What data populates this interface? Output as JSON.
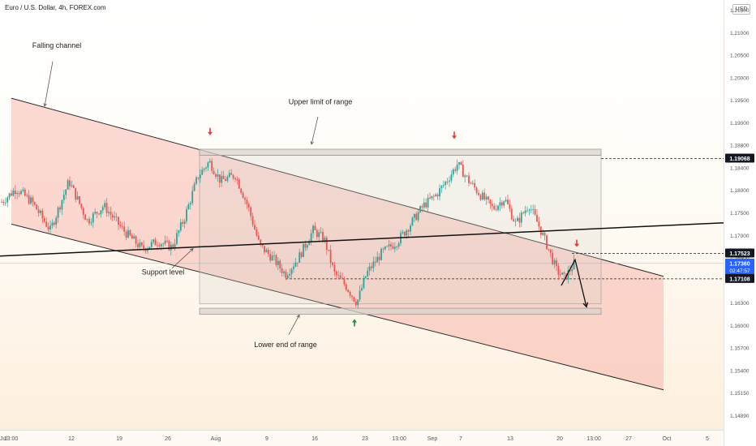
{
  "header": {
    "symbol": "Euro / U.S. Dollar, 4h, FOREX.com",
    "currency": "USD"
  },
  "colors": {
    "bull": "#26a69a",
    "bear": "#ef5350",
    "channel_fill": "#f5a49a",
    "range_fill": "#d9d4cd",
    "price_tag_dark": "#131722",
    "price_tag_blue": "#2962ff",
    "up_arrow": "#1e8a3c",
    "down_arrow": "#e53935"
  },
  "chart_data": {
    "type": "candlestick",
    "timeframe": "4h",
    "ylim": [
      1.1465,
      1.2165
    ],
    "x_ticks": [
      {
        "t": 0,
        "label": "Jul"
      },
      {
        "t": 13.54,
        "label": "13:00"
      },
      {
        "t": 88,
        "label": "12"
      },
      {
        "t": 147,
        "label": "19"
      },
      {
        "t": 207,
        "label": "26"
      },
      {
        "t": 266,
        "label": "Aug"
      },
      {
        "t": 329,
        "label": "9"
      },
      {
        "t": 388,
        "label": "16"
      },
      {
        "t": 450,
        "label": "23"
      },
      {
        "t": 492,
        "label": "13:00"
      },
      {
        "t": 533,
        "label": "Sep"
      },
      {
        "t": 568,
        "label": "7"
      },
      {
        "t": 629,
        "label": "13"
      },
      {
        "t": 690,
        "label": "20"
      },
      {
        "t": 732,
        "label": "13:00"
      },
      {
        "t": 775,
        "label": "27"
      },
      {
        "t": 822,
        "label": "Oct"
      },
      {
        "t": 872,
        "label": "5"
      }
    ],
    "y_ticks": [
      "1.21500",
      "1.21000",
      "1.20500",
      "1.20000",
      "1.19500",
      "1.19000",
      "1.18800",
      "1.18400",
      "1.18000",
      "1.17500",
      "1.17000",
      "1.16900",
      "1.16500",
      "1.16300",
      "1.16000",
      "1.15700",
      "1.15400",
      "1.15150",
      "1.14890"
    ],
    "price_labels": [
      {
        "value": 1.19068,
        "label": "1.19068",
        "style": "dark"
      },
      {
        "value": 1.17523,
        "label": "1.17523",
        "style": "dark"
      },
      {
        "value": 1.1736,
        "label": "1.17360",
        "sub": "02:47:57",
        "style": "blue"
      },
      {
        "value": 1.17108,
        "label": "1.17108",
        "style": "dark"
      }
    ],
    "anchors": [
      {
        "t": 2,
        "p": 1.1836
      },
      {
        "t": 20,
        "p": 1.1858
      },
      {
        "t": 40,
        "p": 1.1835
      },
      {
        "t": 62,
        "p": 1.179
      },
      {
        "t": 85,
        "p": 1.187
      },
      {
        "t": 108,
        "p": 1.1805
      },
      {
        "t": 128,
        "p": 1.183
      },
      {
        "t": 152,
        "p": 1.179
      },
      {
        "t": 175,
        "p": 1.176
      },
      {
        "t": 195,
        "p": 1.1772
      },
      {
        "t": 212,
        "p": 1.1762
      },
      {
        "t": 228,
        "p": 1.1812
      },
      {
        "t": 244,
        "p": 1.1878
      },
      {
        "t": 258,
        "p": 1.1902
      },
      {
        "t": 272,
        "p": 1.187
      },
      {
        "t": 290,
        "p": 1.188
      },
      {
        "t": 306,
        "p": 1.1828
      },
      {
        "t": 320,
        "p": 1.1765
      },
      {
        "t": 336,
        "p": 1.1745
      },
      {
        "t": 352,
        "p": 1.1718
      },
      {
        "t": 368,
        "p": 1.1745
      },
      {
        "t": 386,
        "p": 1.179
      },
      {
        "t": 400,
        "p": 1.1775
      },
      {
        "t": 412,
        "p": 1.172
      },
      {
        "t": 426,
        "p": 1.17
      },
      {
        "t": 440,
        "p": 1.1672
      },
      {
        "t": 452,
        "p": 1.172
      },
      {
        "t": 470,
        "p": 1.1752
      },
      {
        "t": 490,
        "p": 1.1772
      },
      {
        "t": 506,
        "p": 1.18
      },
      {
        "t": 522,
        "p": 1.183
      },
      {
        "t": 538,
        "p": 1.1848
      },
      {
        "t": 552,
        "p": 1.1873
      },
      {
        "t": 564,
        "p": 1.1898
      },
      {
        "t": 578,
        "p": 1.187
      },
      {
        "t": 594,
        "p": 1.1845
      },
      {
        "t": 608,
        "p": 1.1825
      },
      {
        "t": 622,
        "p": 1.1842
      },
      {
        "t": 636,
        "p": 1.18
      },
      {
        "t": 652,
        "p": 1.1832
      },
      {
        "t": 664,
        "p": 1.1798
      },
      {
        "t": 676,
        "p": 1.176
      },
      {
        "t": 686,
        "p": 1.1725
      },
      {
        "t": 696,
        "p": 1.1712
      },
      {
        "t": 708,
        "p": 1.1736
      }
    ],
    "channel": {
      "upper": [
        {
          "t": 14,
          "p": 1.2005
        },
        {
          "t": 818,
          "p": 1.1715
        }
      ],
      "lower": [
        {
          "t": 14,
          "p": 1.18
        },
        {
          "t": 818,
          "p": 1.153
        }
      ],
      "fill_end_t": 818
    },
    "support_line": [
      {
        "t": 0,
        "p": 1.1748
      },
      {
        "t": 892,
        "p": 1.1802
      }
    ],
    "range_boxes": [
      {
        "role": "upper-limit",
        "t0": 246,
        "t1": 741,
        "p0": 1.1912,
        "p1": 1.1922
      },
      {
        "role": "body",
        "t0": 246,
        "t1": 741,
        "p0": 1.167,
        "p1": 1.1912
      },
      {
        "role": "lower-limit",
        "t0": 246,
        "t1": 741,
        "p0": 1.1653,
        "p1": 1.1663
      }
    ],
    "dashed_levels": [
      {
        "value": 1.19068,
        "t0": 741,
        "t1": 892
      },
      {
        "value": 1.17523,
        "t0": 705,
        "t1": 892
      },
      {
        "value": 1.17108,
        "t0": 352,
        "t1": 892
      }
    ],
    "projection": [
      {
        "t": 692,
        "p": 1.17
      },
      {
        "t": 709,
        "p": 1.1742
      },
      {
        "t": 723,
        "p": 1.1665
      }
    ],
    "signal_arrows": [
      {
        "dir": "down",
        "t": 259,
        "p": 1.195
      },
      {
        "dir": "down",
        "t": 560,
        "p": 1.1944
      },
      {
        "dir": "down",
        "t": 711,
        "p": 1.1768
      },
      {
        "dir": "up",
        "t": 437,
        "p": 1.164
      }
    ],
    "annotations": [
      {
        "id": "falling-channel",
        "text": "Falling channel",
        "t": 70,
        "p": 1.2087,
        "pointer": [
          {
            "t": 65,
            "p": 1.2065
          },
          {
            "t": 55,
            "p": 1.1992
          }
        ]
      },
      {
        "id": "upper-limit",
        "text": "Upper limit of range",
        "t": 395,
        "p": 1.1995,
        "pointer": [
          {
            "t": 392,
            "p": 1.1975
          },
          {
            "t": 384,
            "p": 1.193
          }
        ]
      },
      {
        "id": "support-level",
        "text": "Support level",
        "t": 201,
        "p": 1.1718,
        "pointer": [
          {
            "t": 212,
            "p": 1.1728
          },
          {
            "t": 238,
            "p": 1.176
          }
        ]
      },
      {
        "id": "lower-end",
        "text": "Lower end of range",
        "t": 352,
        "p": 1.16,
        "pointer": [
          {
            "t": 356,
            "p": 1.162
          },
          {
            "t": 369,
            "p": 1.1652
          }
        ]
      }
    ]
  }
}
